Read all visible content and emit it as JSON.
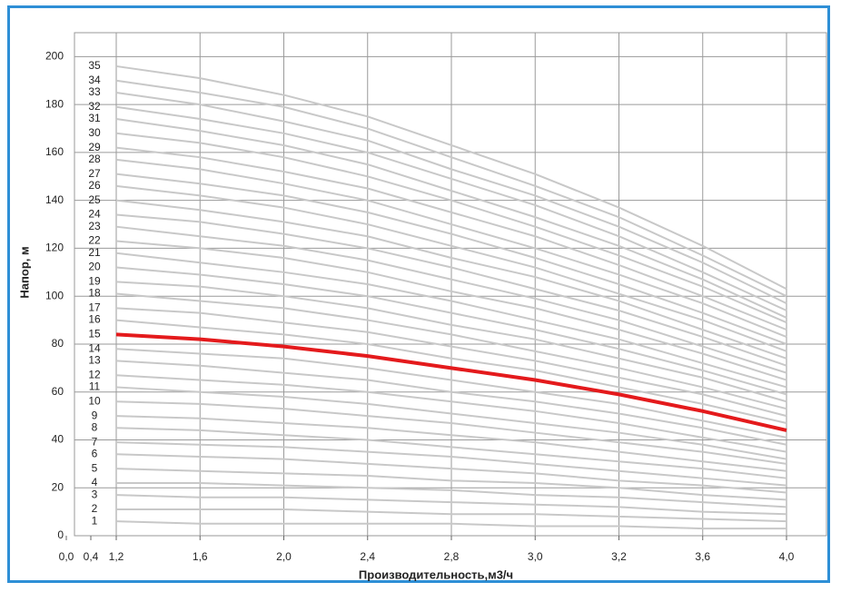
{
  "chart_data": {
    "type": "line",
    "x_label": "Производительность,м3/ч",
    "y_label": "Напор, м",
    "categories": [
      "0,0",
      "0,4",
      "1,2",
      "1,6",
      "2,0",
      "2,4",
      "2,8",
      "3,0",
      "3,2",
      "3,6",
      "4,0"
    ],
    "ylim": [
      0,
      210
    ],
    "yticks": [
      0,
      20,
      40,
      60,
      80,
      100,
      120,
      140,
      160,
      180,
      200
    ],
    "grid": true,
    "series": [
      {
        "name": "1",
        "color": "#c8c8c8",
        "values": [
          null,
          null,
          6,
          5,
          5,
          5,
          5,
          4,
          4,
          3,
          3
        ]
      },
      {
        "name": "2",
        "color": "#c8c8c8",
        "values": [
          null,
          null,
          11,
          11,
          11,
          10,
          9,
          9,
          8,
          7,
          6
        ]
      },
      {
        "name": "3",
        "color": "#c8c8c8",
        "values": [
          null,
          null,
          17,
          16,
          16,
          15,
          14,
          13,
          12,
          10,
          9
        ]
      },
      {
        "name": "4",
        "color": "#c8c8c8",
        "values": [
          null,
          null,
          22,
          22,
          21,
          20,
          19,
          17,
          16,
          14,
          12
        ]
      },
      {
        "name": "5",
        "color": "#c8c8c8",
        "values": [
          null,
          null,
          28,
          27,
          26,
          25,
          23,
          22,
          20,
          17,
          15
        ]
      },
      {
        "name": "6",
        "color": "#c8c8c8",
        "values": [
          null,
          null,
          34,
          33,
          32,
          30,
          28,
          26,
          23,
          21,
          18
        ]
      },
      {
        "name": "7",
        "color": "#c8c8c8",
        "values": [
          null,
          null,
          39,
          38,
          37,
          35,
          33,
          30,
          27,
          24,
          21
        ]
      },
      {
        "name": "8",
        "color": "#c8c8c8",
        "values": [
          null,
          null,
          45,
          44,
          42,
          40,
          37,
          34,
          31,
          28,
          24
        ]
      },
      {
        "name": "9",
        "color": "#c8c8c8",
        "values": [
          null,
          null,
          50,
          49,
          47,
          45,
          42,
          39,
          35,
          31,
          27
        ]
      },
      {
        "name": "10",
        "color": "#c8c8c8",
        "values": [
          null,
          null,
          56,
          55,
          53,
          50,
          47,
          43,
          39,
          35,
          30
        ]
      },
      {
        "name": "11",
        "color": "#c8c8c8",
        "values": [
          null,
          null,
          62,
          60,
          58,
          55,
          51,
          47,
          43,
          38,
          32
        ]
      },
      {
        "name": "12",
        "color": "#c8c8c8",
        "values": [
          null,
          null,
          67,
          65,
          63,
          60,
          56,
          52,
          47,
          41,
          35
        ]
      },
      {
        "name": "13",
        "color": "#c8c8c8",
        "values": [
          null,
          null,
          73,
          71,
          68,
          65,
          60,
          56,
          51,
          45,
          38
        ]
      },
      {
        "name": "14",
        "color": "#c8c8c8",
        "values": [
          null,
          null,
          78,
          76,
          74,
          70,
          65,
          60,
          55,
          48,
          41
        ]
      },
      {
        "name": "15",
        "color": "#e41a1c",
        "values": [
          null,
          null,
          84,
          82,
          79,
          75,
          70,
          65,
          59,
          52,
          44
        ]
      },
      {
        "name": "16",
        "color": "#c8c8c8",
        "values": [
          null,
          null,
          90,
          87,
          84,
          80,
          74,
          69,
          62,
          55,
          47
        ]
      },
      {
        "name": "17",
        "color": "#c8c8c8",
        "values": [
          null,
          null,
          95,
          93,
          89,
          85,
          79,
          73,
          66,
          59,
          50
        ]
      },
      {
        "name": "18",
        "color": "#c8c8c8",
        "values": [
          null,
          null,
          101,
          98,
          95,
          90,
          84,
          77,
          70,
          62,
          53
        ]
      },
      {
        "name": "19",
        "color": "#c8c8c8",
        "values": [
          null,
          null,
          106,
          104,
          100,
          95,
          88,
          82,
          74,
          66,
          56
        ]
      },
      {
        "name": "20",
        "color": "#c8c8c8",
        "values": [
          null,
          null,
          112,
          109,
          105,
          100,
          93,
          86,
          78,
          69,
          59
        ]
      },
      {
        "name": "21",
        "color": "#c8c8c8",
        "values": [
          null,
          null,
          118,
          114,
          110,
          105,
          98,
          90,
          82,
          72,
          62
        ]
      },
      {
        "name": "22",
        "color": "#c8c8c8",
        "values": [
          null,
          null,
          123,
          120,
          116,
          110,
          102,
          95,
          86,
          76,
          65
        ]
      },
      {
        "name": "23",
        "color": "#c8c8c8",
        "values": [
          null,
          null,
          129,
          125,
          121,
          115,
          107,
          99,
          90,
          79,
          68
        ]
      },
      {
        "name": "24",
        "color": "#c8c8c8",
        "values": [
          null,
          null,
          134,
          131,
          126,
          120,
          112,
          103,
          94,
          83,
          71
        ]
      },
      {
        "name": "25",
        "color": "#c8c8c8",
        "values": [
          null,
          null,
          140,
          136,
          131,
          125,
          116,
          108,
          98,
          86,
          74
        ]
      },
      {
        "name": "26",
        "color": "#c8c8c8",
        "values": [
          null,
          null,
          146,
          142,
          137,
          130,
          121,
          112,
          101,
          90,
          77
        ]
      },
      {
        "name": "27",
        "color": "#c8c8c8",
        "values": [
          null,
          null,
          151,
          147,
          142,
          135,
          126,
          116,
          105,
          93,
          80
        ]
      },
      {
        "name": "28",
        "color": "#c8c8c8",
        "values": [
          null,
          null,
          157,
          153,
          147,
          140,
          130,
          120,
          109,
          97,
          83
        ]
      },
      {
        "name": "29",
        "color": "#c8c8c8",
        "values": [
          null,
          null,
          162,
          158,
          152,
          145,
          135,
          125,
          113,
          100,
          86
        ]
      },
      {
        "name": "30",
        "color": "#c8c8c8",
        "values": [
          null,
          null,
          168,
          164,
          158,
          150,
          140,
          129,
          117,
          104,
          89
        ]
      },
      {
        "name": "31",
        "color": "#c8c8c8",
        "values": [
          null,
          null,
          174,
          169,
          163,
          155,
          144,
          133,
          121,
          107,
          91
        ]
      },
      {
        "name": "32",
        "color": "#c8c8c8",
        "values": [
          null,
          null,
          179,
          174,
          168,
          160,
          149,
          138,
          125,
          110,
          94
        ]
      },
      {
        "name": "33",
        "color": "#c8c8c8",
        "values": [
          null,
          null,
          185,
          180,
          173,
          165,
          153,
          142,
          129,
          114,
          97
        ]
      },
      {
        "name": "34",
        "color": "#c8c8c8",
        "values": [
          null,
          null,
          190,
          185,
          179,
          170,
          158,
          146,
          133,
          117,
          100
        ]
      },
      {
        "name": "35",
        "color": "#c8c8c8",
        "values": [
          null,
          null,
          196,
          191,
          184,
          175,
          163,
          151,
          137,
          121,
          103
        ]
      }
    ]
  }
}
